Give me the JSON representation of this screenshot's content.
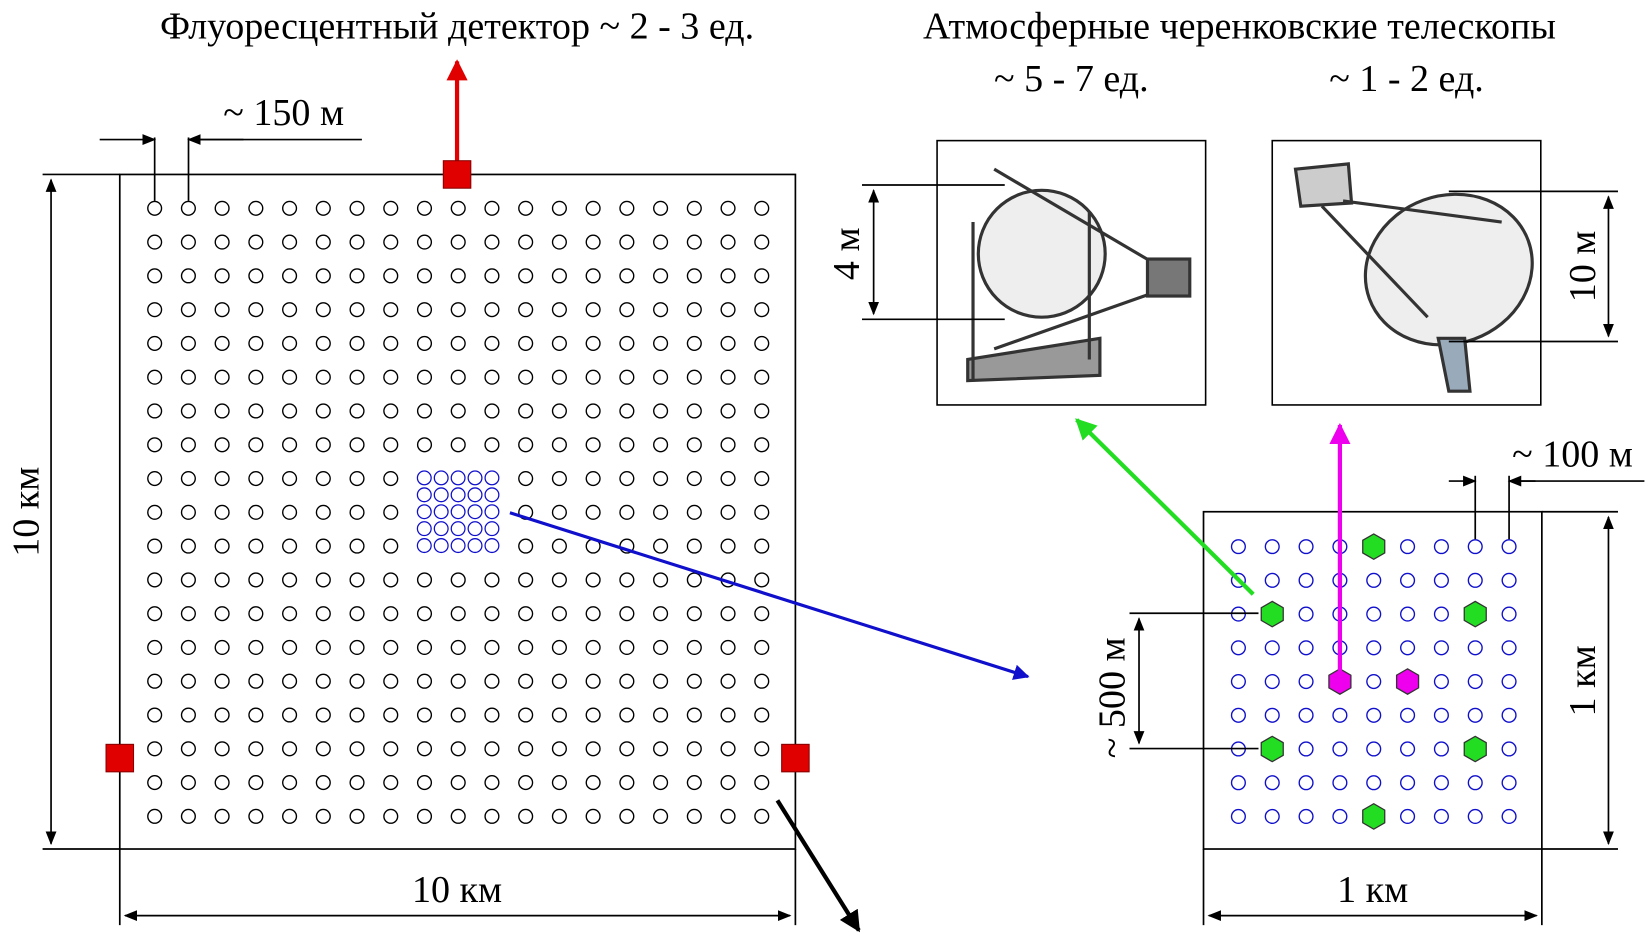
{
  "header": {
    "fluorescence": "Флуоресцентный детектор ~ 2 - 3 ед.",
    "cherenkov": "Атмосферные черенковские телескопы",
    "count_small": "~ 5 - 7 ед.",
    "count_large": "~ 1 - 2 ед."
  },
  "field": {
    "spacing": "~ 150 м",
    "height": "10 км",
    "width": "10 км"
  },
  "telescopes": {
    "small_size": "4 м",
    "large_size": "10 м"
  },
  "cluster": {
    "spacing": "~ 100 м",
    "distance": "~ 500 м",
    "height": "1 км",
    "width": "1 км"
  }
}
